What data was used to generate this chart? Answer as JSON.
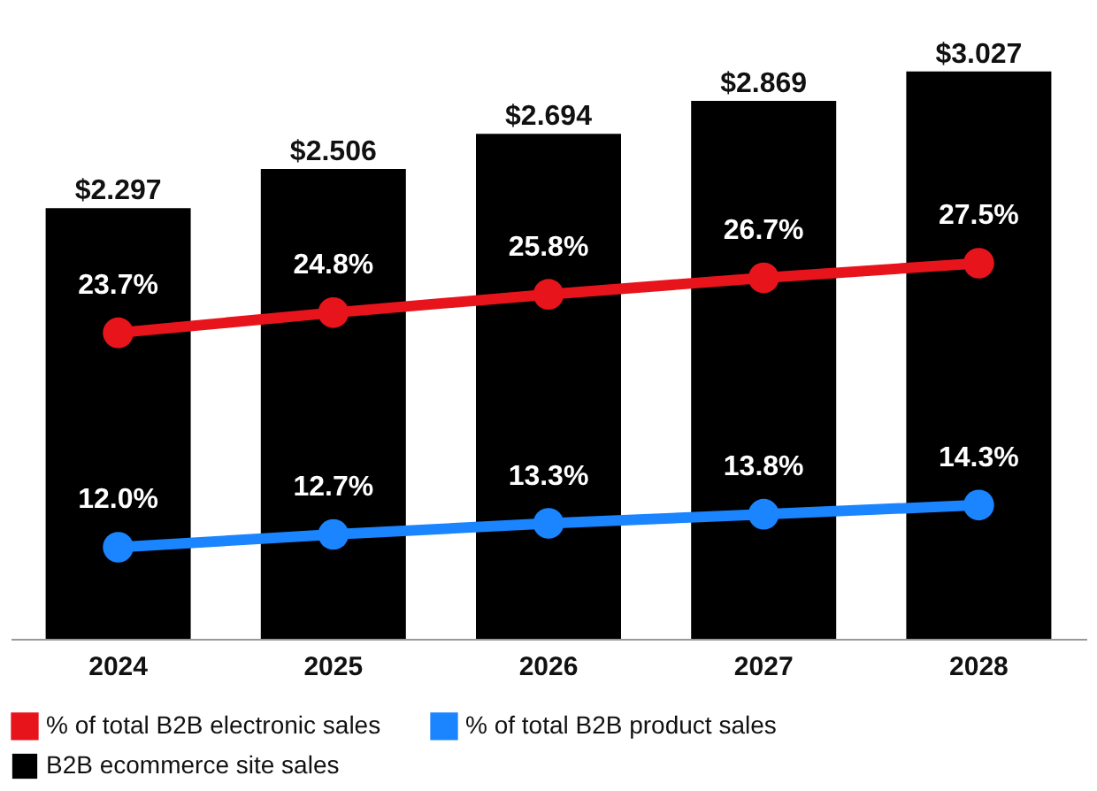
{
  "chart_data": {
    "type": "bar",
    "categories": [
      "2024",
      "2025",
      "2026",
      "2027",
      "2028"
    ],
    "series": [
      {
        "name": "B2B ecommerce site sales",
        "type": "bar",
        "color": "#000000",
        "values": [
          2.297,
          2.506,
          2.694,
          2.869,
          3.027
        ],
        "value_labels": [
          "$2.297",
          "$2.506",
          "$2.694",
          "$2.869",
          "$3.027"
        ]
      },
      {
        "name": "% of total B2B electronic sales",
        "type": "line",
        "axis": "y2",
        "color": "#e8141c",
        "values": [
          23.7,
          24.8,
          25.8,
          26.7,
          27.5
        ],
        "value_labels": [
          "23.7%",
          "24.8%",
          "25.8%",
          "26.7%",
          "27.5%"
        ]
      },
      {
        "name": "% of total B2B product sales",
        "type": "line",
        "axis": "y2",
        "color": "#1a85ff",
        "values": [
          12.0,
          12.7,
          13.3,
          13.8,
          14.3
        ],
        "value_labels": [
          "12.0%",
          "12.7%",
          "13.3%",
          "13.8%",
          "14.3%"
        ]
      }
    ],
    "ylim": [
      0,
      3.03
    ],
    "y2lim": [
      7,
      38
    ],
    "tick_labels": "x",
    "legend": "bottom",
    "marker": "circle"
  }
}
